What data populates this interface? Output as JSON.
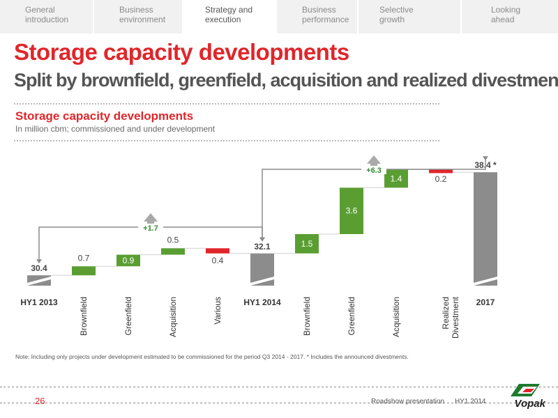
{
  "nav": {
    "tabs": [
      {
        "label": "General introduction",
        "active": false
      },
      {
        "label": "Business environment",
        "active": false
      },
      {
        "label": "Strategy and execution",
        "active": true
      },
      {
        "label": "Business performance",
        "active": false
      },
      {
        "label": "Selective growth",
        "active": false
      },
      {
        "label": "Looking ahead",
        "active": false
      }
    ]
  },
  "header": {
    "title": "Storage capacity developments",
    "subtitle": "Split by brownfield, greenfield, acquisition and realized divestments"
  },
  "chart_header": {
    "title": "Storage capacity developments",
    "subtitle": "In million cbm; commissioned and under development"
  },
  "chart_data": {
    "type": "bar",
    "subtype": "waterfall",
    "categories": [
      "HY1 2013",
      "Brownfield",
      "Greenfield",
      "Acquisition",
      "Various",
      "HY1 2014",
      "Brownfield",
      "Greenfield",
      "Acquisition",
      "Realized Divestment",
      "2017"
    ],
    "values": [
      30.4,
      0.7,
      0.9,
      0.5,
      -0.4,
      32.1,
      1.5,
      3.6,
      1.4,
      -0.2,
      38.4
    ],
    "labels": [
      "30.4",
      "0.7",
      "0.9",
      "0.5",
      "0.4",
      "32.1",
      "1.5",
      "3.6",
      "1.4",
      "0.2",
      "38.4 *"
    ],
    "kinds": [
      "total",
      "increase",
      "increase",
      "increase",
      "decrease",
      "total",
      "increase",
      "increase",
      "increase",
      "decrease",
      "total"
    ],
    "annotations": [
      {
        "text": "+1.7",
        "from": "HY1 2013",
        "to": "HY1 2014"
      },
      {
        "text": "+6.3",
        "from": "HY1 2014",
        "to": "2017"
      }
    ],
    "colors": {
      "total": "#8c8c8c",
      "increase": "#5a9e32",
      "decrease": "#e0262b",
      "label_on_bar": "#ffffff",
      "text": "#444444",
      "bracket": "#8c8c8c",
      "annotation": "#2f8a2f"
    }
  },
  "note": "Note: Including only projects under development estimated to be commissioned for the period Q3 2014 - 2017. * Includes the announced divestments.",
  "footer": {
    "page_number": "26",
    "presentation": "Roadshow presentation",
    "period": "HY1 2014",
    "logo_text": "Vopak",
    "accent": "#e0262b"
  }
}
